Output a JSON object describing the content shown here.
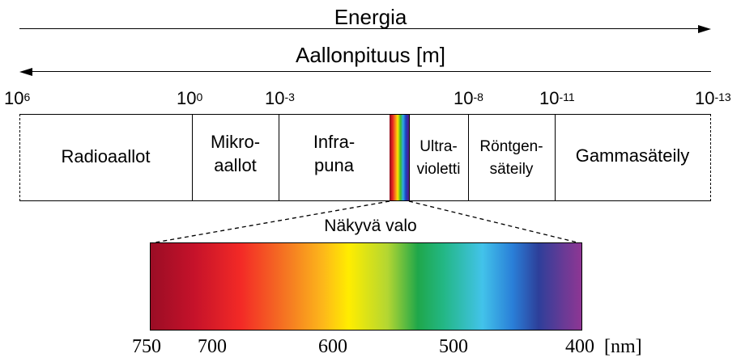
{
  "energy": {
    "label": "Energia"
  },
  "wavelength": {
    "label": "Aallonpituus [m]"
  },
  "scale_ticks": [
    {
      "base": "10",
      "exp": "6"
    },
    {
      "base": "10",
      "exp": "0"
    },
    {
      "base": "10",
      "exp": "-3"
    },
    {
      "base": "10",
      "exp": "-8"
    },
    {
      "base": "10",
      "exp": "-11"
    },
    {
      "base": "10",
      "exp": "-13"
    }
  ],
  "bands": [
    {
      "line1": "Radioaallot",
      "line2": ""
    },
    {
      "line1": "Mikro-",
      "line2": "aallot"
    },
    {
      "line1": "Infra-",
      "line2": "puna"
    },
    {
      "line1": "Ultra-",
      "line2": "violetti"
    },
    {
      "line1": "Röntgen-",
      "line2": "säteily"
    },
    {
      "line1": "Gammasäteily",
      "line2": ""
    }
  ],
  "visible": {
    "label": "Näkyvä valo"
  },
  "nm_ticks": [
    "750",
    "700",
    "600",
    "500",
    "400"
  ],
  "nm_unit": "[nm]"
}
